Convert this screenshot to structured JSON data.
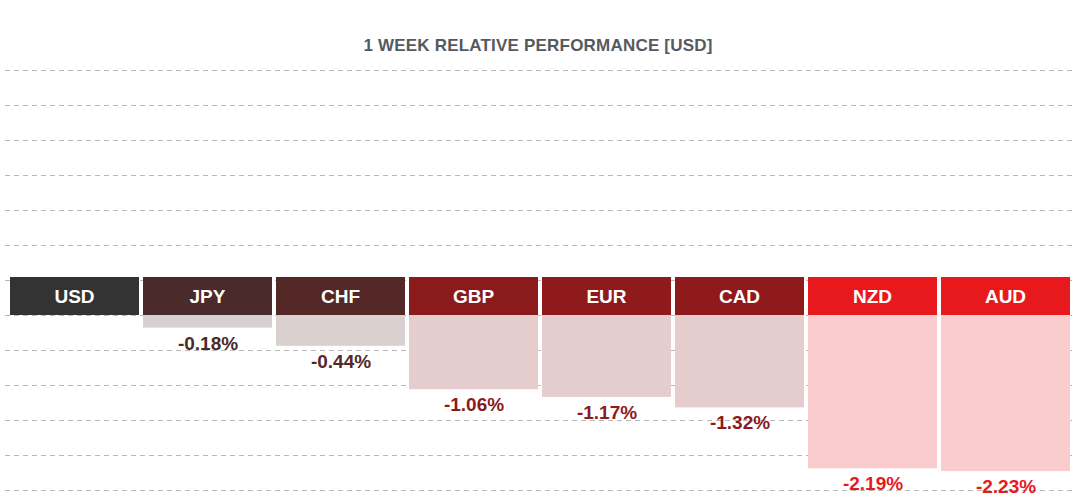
{
  "chart_data": {
    "type": "bar",
    "title": "1 WEEK RELATIVE PERFORMANCE [USD]",
    "categories": [
      "USD",
      "JPY",
      "CHF",
      "GBP",
      "EUR",
      "CAD",
      "NZD",
      "AUD"
    ],
    "values": [
      0,
      -0.18,
      -0.44,
      -1.06,
      -1.17,
      -1.32,
      -2.19,
      -2.23
    ],
    "value_labels": [
      null,
      "-0.18%",
      "-0.44%",
      "-1.06%",
      "-1.17%",
      "-1.32%",
      "-2.19%",
      "-2.23%"
    ],
    "colors": [
      "#333333",
      "#4a2a2a",
      "#552828",
      "#8b1a1c",
      "#8e1a1c",
      "#8e1a1c",
      "#e8191c",
      "#e8191c"
    ],
    "ylim": [
      -2.5,
      3.5
    ],
    "yticks": [
      -2.5,
      -2,
      -1.5,
      -1,
      -0.5,
      0,
      0.5,
      1,
      1.5,
      2,
      2.5,
      3,
      3.5
    ],
    "grid": true,
    "data_labels": true,
    "tick_labels": "x"
  }
}
